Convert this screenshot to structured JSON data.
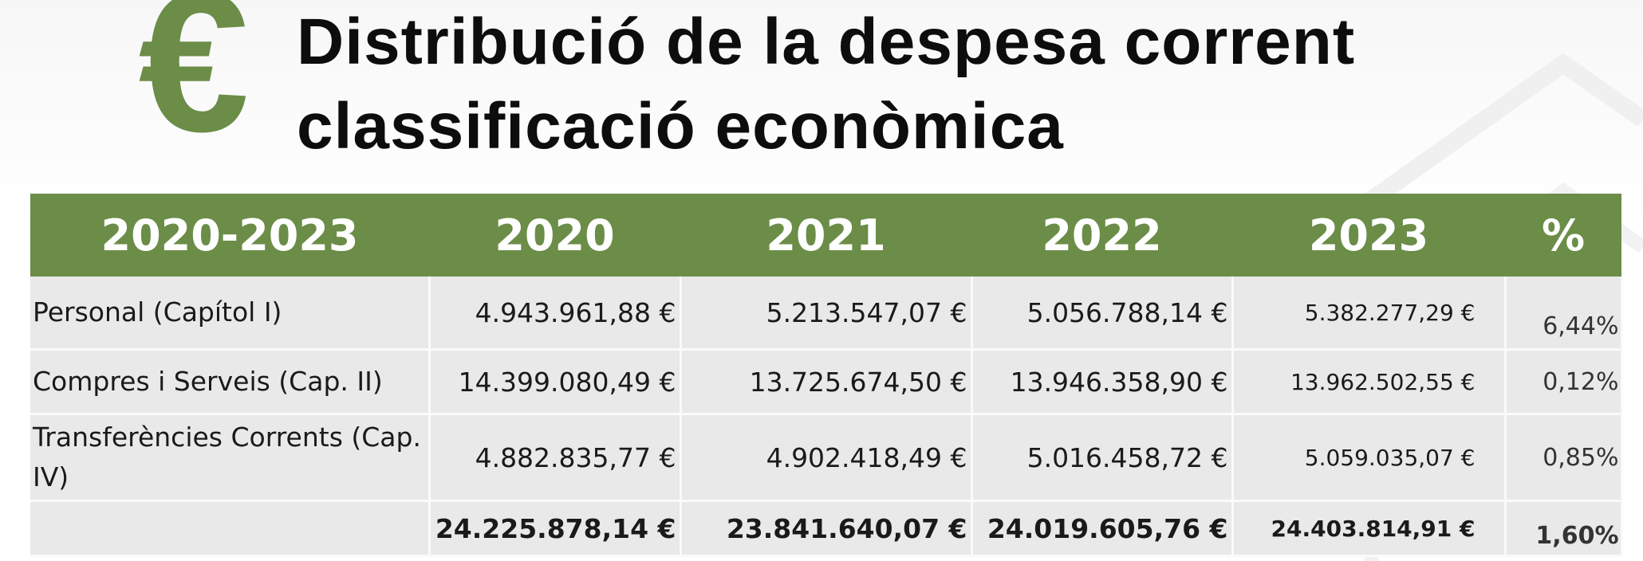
{
  "title": {
    "line1": "Distribució de la despesa corrent",
    "line2": "classificació econòmica",
    "logo_symbol": "€",
    "logo_icon": "euro-sign-icon"
  },
  "colors": {
    "accent_green": "#6b8d47",
    "header_text": "#ffffff",
    "row_background": "#e9e9e9"
  },
  "table": {
    "headers": [
      "2020-2023",
      "2020",
      "2021",
      "2022",
      "2023",
      "%"
    ],
    "rows": [
      {
        "label": "Personal (Capítol I)",
        "v2020": "4.943.961,88 €",
        "v2021": "5.213.547,07 €",
        "v2022": "5.056.788,14 €",
        "v2023": "5.382.277,29 €",
        "pct": "6,44%"
      },
      {
        "label": "Compres i Serveis (Cap. II)",
        "v2020": "14.399.080,49 €",
        "v2021": "13.725.674,50 €",
        "v2022": "13.946.358,90 €",
        "v2023": "13.962.502,55 €",
        "pct": "0,12%"
      },
      {
        "label": "Transferències Corrents (Cap. IV)",
        "v2020": "4.882.835,77 €",
        "v2021": "4.902.418,49 €",
        "v2022": "5.016.458,72 €",
        "v2023": "5.059.035,07 €",
        "pct": "0,85%"
      }
    ],
    "total": {
      "label": "",
      "v2020": "24.225.878,14 €",
      "v2021": "23.841.640,07 €",
      "v2022": "24.019.605,76 €",
      "v2023": "24.403.814,91 €",
      "pct": "1,60%"
    }
  }
}
